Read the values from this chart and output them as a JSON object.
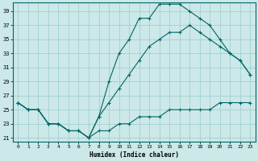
{
  "xlabel": "Humidex (Indice chaleur)",
  "bg_color": "#cce8e8",
  "line_color": "#006666",
  "grid_color": "#99cccc",
  "xlim": [
    -0.5,
    23.5
  ],
  "ylim": [
    20.5,
    40.2
  ],
  "xticks": [
    0,
    1,
    2,
    3,
    4,
    5,
    6,
    7,
    8,
    9,
    10,
    11,
    12,
    13,
    14,
    15,
    16,
    17,
    18,
    19,
    20,
    21,
    22,
    23
  ],
  "yticks": [
    21,
    23,
    25,
    27,
    29,
    31,
    33,
    35,
    37,
    39
  ],
  "hours": [
    0,
    1,
    2,
    3,
    4,
    5,
    6,
    7,
    8,
    9,
    10,
    11,
    12,
    13,
    14,
    15,
    16,
    17,
    18,
    19,
    20,
    21,
    22,
    23
  ],
  "line1": [
    26,
    25,
    25,
    23,
    23,
    22,
    22,
    21,
    24,
    29,
    33,
    35,
    38,
    38,
    40,
    40,
    40,
    39,
    38,
    37,
    35,
    33,
    32,
    30
  ],
  "line2": [
    26,
    25,
    25,
    23,
    23,
    22,
    22,
    21,
    24,
    26,
    28,
    30,
    32,
    34,
    35,
    36,
    36,
    37,
    36,
    35,
    34,
    33,
    32,
    30
  ],
  "line3": [
    26,
    25,
    25,
    23,
    23,
    22,
    22,
    21,
    22,
    22,
    23,
    23,
    24,
    24,
    24,
    25,
    25,
    25,
    25,
    25,
    26,
    26,
    26,
    26
  ]
}
